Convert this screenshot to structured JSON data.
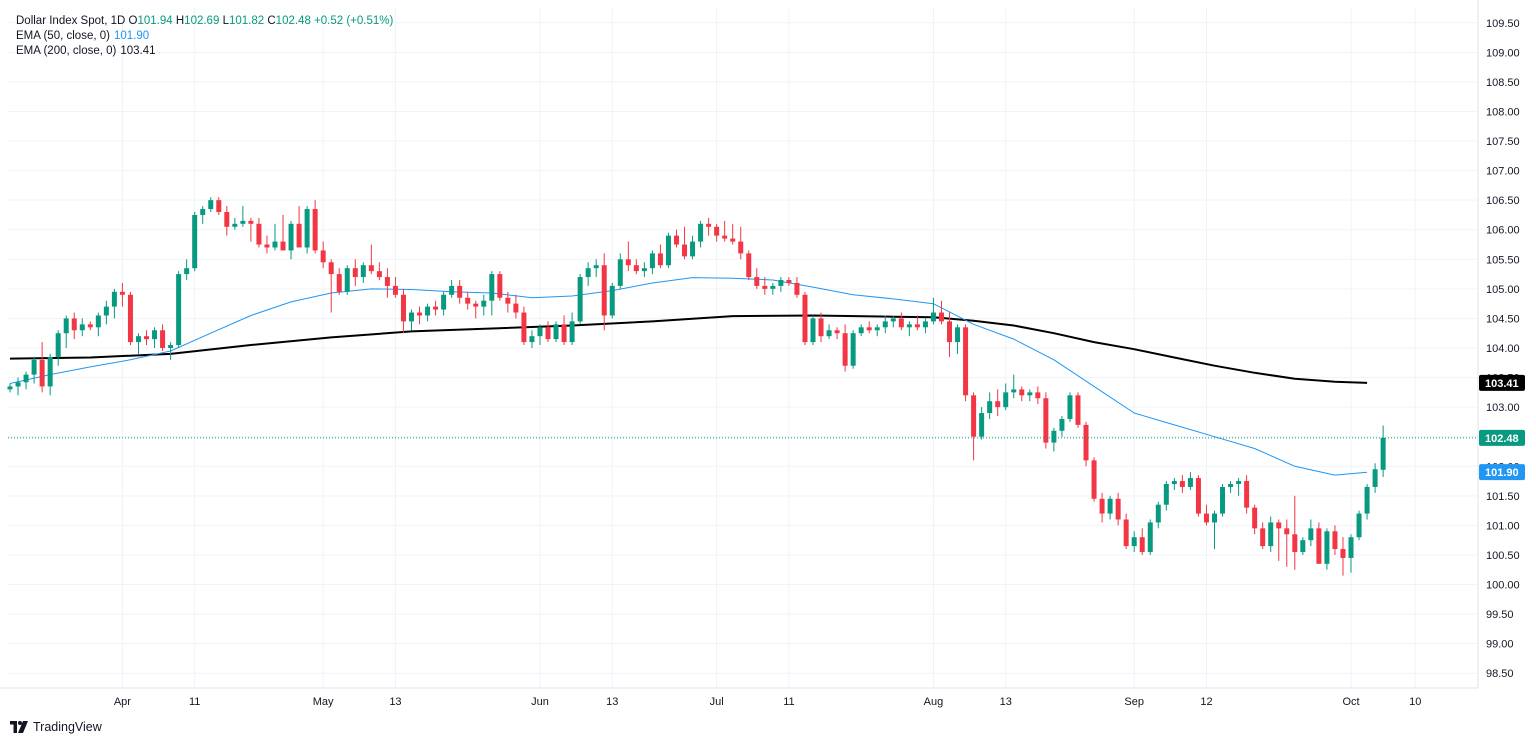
{
  "legend": {
    "symbol": "Dollar Index Spot",
    "interval": "1D",
    "open_label": "O",
    "open": "101.94",
    "high_label": "H",
    "high": "102.69",
    "low_label": "L",
    "low": "101.82",
    "close_label": "C",
    "close": "102.48",
    "change": "+0.52 (+0.51%)",
    "ema50_label": "EMA (50, close, 0)",
    "ema50_value": "101.90",
    "ema200_label": "EMA (200, close, 0)",
    "ema200_value": "103.41"
  },
  "brand": {
    "name": "TradingView"
  },
  "colors": {
    "up": "#089981",
    "down": "#f23645",
    "ema50": "#2196f3",
    "ema200": "#000000",
    "grid": "#f0f3fa"
  },
  "chart_data": {
    "type": "candlestick",
    "title": "Dollar Index Spot, 1D",
    "ylim": [
      98.25,
      109.75
    ],
    "y_ticks": [
      98.5,
      99.0,
      99.5,
      100.0,
      100.5,
      101.0,
      101.5,
      102.0,
      102.5,
      103.0,
      103.5,
      104.0,
      104.5,
      105.0,
      105.5,
      106.0,
      106.5,
      107.0,
      107.5,
      108.0,
      108.5,
      109.0,
      109.5
    ],
    "y_tick_labels": [
      "98.50",
      "99.00",
      "99.50",
      "100.00",
      "100.50",
      "101.00",
      "101.50",
      "102.00",
      "102.50",
      "103.00",
      "103.50",
      "104.00",
      "104.50",
      "105.00",
      "105.50",
      "106.00",
      "106.50",
      "107.00",
      "107.50",
      "108.00",
      "108.50",
      "109.00",
      "109.50"
    ],
    "x_tick_labels": [
      {
        "label": "Apr",
        "index": 14
      },
      {
        "label": "11",
        "index": 23
      },
      {
        "label": "May",
        "index": 39
      },
      {
        "label": "13",
        "index": 48
      },
      {
        "label": "Jun",
        "index": 66
      },
      {
        "label": "13",
        "index": 75
      },
      {
        "label": "Jul",
        "index": 88
      },
      {
        "label": "11",
        "index": 97
      },
      {
        "label": "Aug",
        "index": 115
      },
      {
        "label": "13",
        "index": 124
      },
      {
        "label": "Sep",
        "index": 140
      },
      {
        "label": "12",
        "index": 149
      },
      {
        "label": "Oct",
        "index": 167
      },
      {
        "label": "10",
        "index": 175
      }
    ],
    "last_close": 102.48,
    "ema50_last": 101.9,
    "ema200_last": 103.41,
    "candles": [
      [
        103.3,
        103.4,
        103.25,
        103.35
      ],
      [
        103.35,
        103.5,
        103.2,
        103.42
      ],
      [
        103.42,
        103.6,
        103.3,
        103.55
      ],
      [
        103.55,
        103.85,
        103.4,
        103.8
      ],
      [
        103.8,
        104.1,
        103.25,
        103.35
      ],
      [
        103.35,
        103.9,
        103.2,
        103.85
      ],
      [
        103.85,
        104.3,
        103.7,
        104.25
      ],
      [
        104.25,
        104.55,
        104.0,
        104.5
      ],
      [
        104.5,
        104.6,
        104.15,
        104.3
      ],
      [
        104.3,
        104.5,
        104.2,
        104.4
      ],
      [
        104.4,
        104.45,
        104.3,
        104.35
      ],
      [
        104.35,
        104.6,
        104.2,
        104.55
      ],
      [
        104.55,
        104.8,
        104.4,
        104.7
      ],
      [
        104.7,
        105.0,
        104.5,
        104.95
      ],
      [
        104.95,
        105.1,
        104.7,
        104.9
      ],
      [
        104.9,
        104.95,
        104.05,
        104.1
      ],
      [
        104.1,
        104.25,
        103.9,
        104.2
      ],
      [
        104.2,
        104.3,
        104.05,
        104.15
      ],
      [
        104.15,
        104.35,
        104.0,
        104.3
      ],
      [
        104.3,
        104.4,
        103.95,
        104.0
      ],
      [
        104.0,
        104.1,
        103.8,
        104.05
      ],
      [
        104.05,
        105.3,
        104.0,
        105.25
      ],
      [
        105.25,
        105.5,
        105.15,
        105.35
      ],
      [
        105.35,
        106.3,
        105.3,
        106.25
      ],
      [
        106.25,
        106.4,
        106.1,
        106.35
      ],
      [
        106.35,
        106.55,
        106.3,
        106.5
      ],
      [
        106.5,
        106.55,
        106.25,
        106.3
      ],
      [
        106.3,
        106.4,
        105.9,
        106.05
      ],
      [
        106.05,
        106.2,
        106.0,
        106.1
      ],
      [
        106.1,
        106.4,
        106.05,
        106.15
      ],
      [
        106.15,
        106.2,
        105.8,
        106.1
      ],
      [
        106.1,
        106.2,
        105.7,
        105.75
      ],
      [
        105.75,
        105.9,
        105.6,
        105.7
      ],
      [
        105.7,
        106.1,
        105.65,
        105.8
      ],
      [
        105.8,
        106.25,
        105.7,
        105.65
      ],
      [
        105.65,
        106.15,
        105.5,
        106.1
      ],
      [
        106.1,
        106.4,
        105.8,
        105.7
      ],
      [
        105.7,
        106.4,
        105.6,
        106.35
      ],
      [
        106.35,
        106.5,
        105.6,
        105.65
      ],
      [
        105.65,
        105.8,
        105.35,
        105.45
      ],
      [
        105.45,
        105.5,
        104.6,
        105.25
      ],
      [
        105.25,
        105.35,
        104.9,
        104.95
      ],
      [
        104.95,
        105.4,
        104.9,
        105.35
      ],
      [
        105.35,
        105.5,
        105.05,
        105.2
      ],
      [
        105.2,
        105.45,
        105.1,
        105.4
      ],
      [
        105.4,
        105.75,
        105.25,
        105.3
      ],
      [
        105.3,
        105.45,
        105.15,
        105.2
      ],
      [
        105.2,
        105.35,
        104.85,
        105.05
      ],
      [
        105.05,
        105.2,
        104.85,
        104.9
      ],
      [
        104.9,
        105.0,
        104.25,
        104.45
      ],
      [
        104.45,
        104.65,
        104.3,
        104.6
      ],
      [
        104.6,
        104.7,
        104.4,
        104.55
      ],
      [
        104.55,
        104.75,
        104.45,
        104.7
      ],
      [
        104.7,
        104.8,
        104.55,
        104.65
      ],
      [
        104.65,
        104.95,
        104.55,
        104.9
      ],
      [
        104.9,
        105.15,
        104.85,
        105.05
      ],
      [
        105.05,
        105.15,
        104.75,
        104.85
      ],
      [
        104.85,
        104.95,
        104.65,
        104.75
      ],
      [
        104.75,
        104.8,
        104.5,
        104.7
      ],
      [
        104.7,
        104.9,
        104.55,
        104.8
      ],
      [
        104.8,
        105.3,
        104.55,
        105.25
      ],
      [
        105.25,
        105.3,
        104.8,
        104.85
      ],
      [
        104.85,
        104.95,
        104.6,
        104.75
      ],
      [
        104.75,
        104.9,
        104.5,
        104.6
      ],
      [
        104.6,
        104.7,
        104.05,
        104.1
      ],
      [
        104.1,
        104.3,
        104.0,
        104.2
      ],
      [
        104.2,
        104.4,
        104.05,
        104.35
      ],
      [
        104.35,
        104.45,
        104.1,
        104.15
      ],
      [
        104.15,
        104.45,
        104.1,
        104.4
      ],
      [
        104.4,
        104.55,
        104.05,
        104.1
      ],
      [
        104.1,
        104.6,
        104.05,
        104.45
      ],
      [
        104.45,
        105.25,
        104.4,
        105.2
      ],
      [
        105.2,
        105.45,
        105.05,
        105.35
      ],
      [
        105.35,
        105.5,
        105.2,
        105.4
      ],
      [
        105.4,
        105.6,
        104.3,
        104.55
      ],
      [
        104.55,
        105.1,
        104.5,
        105.05
      ],
      [
        105.05,
        105.6,
        105.0,
        105.5
      ],
      [
        105.5,
        105.8,
        105.3,
        105.4
      ],
      [
        105.4,
        105.5,
        105.25,
        105.3
      ],
      [
        105.3,
        105.45,
        105.2,
        105.35
      ],
      [
        105.35,
        105.65,
        105.25,
        105.6
      ],
      [
        105.6,
        105.75,
        105.35,
        105.4
      ],
      [
        105.4,
        105.95,
        105.35,
        105.9
      ],
      [
        105.9,
        106.0,
        105.7,
        105.75
      ],
      [
        105.75,
        106.05,
        105.5,
        105.55
      ],
      [
        105.55,
        105.9,
        105.5,
        105.8
      ],
      [
        105.8,
        106.15,
        105.7,
        106.1
      ],
      [
        106.1,
        106.2,
        105.9,
        106.05
      ],
      [
        106.05,
        106.1,
        105.8,
        105.9
      ],
      [
        105.9,
        106.15,
        105.8,
        105.85
      ],
      [
        105.85,
        106.1,
        105.75,
        105.8
      ],
      [
        105.8,
        106.05,
        105.5,
        105.6
      ],
      [
        105.6,
        105.65,
        105.15,
        105.2
      ],
      [
        105.2,
        105.35,
        105.0,
        105.05
      ],
      [
        105.05,
        105.2,
        104.9,
        105.0
      ],
      [
        105.0,
        105.1,
        104.9,
        105.05
      ],
      [
        105.05,
        105.2,
        104.95,
        105.15
      ],
      [
        105.15,
        105.2,
        105.05,
        105.1
      ],
      [
        105.1,
        105.2,
        104.85,
        104.9
      ],
      [
        104.9,
        104.95,
        104.05,
        104.1
      ],
      [
        104.1,
        104.55,
        104.05,
        104.5
      ],
      [
        104.5,
        104.6,
        104.1,
        104.2
      ],
      [
        104.2,
        104.4,
        104.15,
        104.3
      ],
      [
        104.3,
        104.35,
        104.15,
        104.25
      ],
      [
        104.25,
        104.4,
        103.6,
        103.7
      ],
      [
        103.7,
        104.3,
        103.65,
        104.25
      ],
      [
        104.25,
        104.4,
        104.2,
        104.35
      ],
      [
        104.35,
        104.45,
        104.25,
        104.3
      ],
      [
        104.3,
        104.4,
        104.2,
        104.35
      ],
      [
        104.35,
        104.55,
        104.25,
        104.45
      ],
      [
        104.45,
        104.55,
        104.35,
        104.5
      ],
      [
        104.5,
        104.6,
        104.3,
        104.35
      ],
      [
        104.35,
        104.45,
        104.2,
        104.4
      ],
      [
        104.4,
        104.55,
        104.3,
        104.35
      ],
      [
        104.35,
        104.5,
        104.25,
        104.45
      ],
      [
        104.45,
        104.85,
        104.4,
        104.6
      ],
      [
        104.6,
        104.8,
        104.4,
        104.45
      ],
      [
        104.45,
        104.6,
        103.85,
        104.1
      ],
      [
        104.1,
        104.4,
        103.9,
        104.35
      ],
      [
        104.35,
        104.4,
        103.1,
        103.2
      ],
      [
        103.2,
        103.25,
        102.1,
        102.5
      ],
      [
        102.5,
        103.0,
        102.45,
        102.9
      ],
      [
        102.9,
        103.25,
        102.8,
        103.1
      ],
      [
        103.1,
        103.3,
        102.85,
        103.0
      ],
      [
        103.0,
        103.4,
        102.95,
        103.25
      ],
      [
        103.25,
        103.55,
        103.15,
        103.3
      ],
      [
        103.3,
        103.35,
        103.1,
        103.2
      ],
      [
        103.2,
        103.3,
        103.1,
        103.25
      ],
      [
        103.25,
        103.35,
        103.05,
        103.15
      ],
      [
        103.15,
        103.25,
        102.3,
        102.4
      ],
      [
        102.4,
        102.65,
        102.25,
        102.6
      ],
      [
        102.6,
        102.85,
        102.5,
        102.8
      ],
      [
        102.8,
        103.25,
        102.75,
        103.2
      ],
      [
        103.2,
        103.25,
        102.65,
        102.7
      ],
      [
        102.7,
        102.75,
        102.0,
        102.1
      ],
      [
        102.1,
        102.15,
        101.4,
        101.45
      ],
      [
        101.45,
        101.55,
        101.05,
        101.2
      ],
      [
        101.2,
        101.5,
        101.1,
        101.45
      ],
      [
        101.45,
        101.55,
        101.0,
        101.1
      ],
      [
        101.1,
        101.2,
        100.6,
        100.65
      ],
      [
        100.65,
        100.9,
        100.55,
        100.8
      ],
      [
        100.8,
        100.95,
        100.5,
        100.55
      ],
      [
        100.55,
        101.1,
        100.5,
        101.05
      ],
      [
        101.05,
        101.4,
        100.95,
        101.35
      ],
      [
        101.35,
        101.75,
        101.25,
        101.7
      ],
      [
        101.7,
        101.8,
        101.6,
        101.75
      ],
      [
        101.75,
        101.85,
        101.55,
        101.65
      ],
      [
        101.65,
        101.9,
        101.6,
        101.8
      ],
      [
        101.8,
        101.85,
        101.15,
        101.2
      ],
      [
        101.2,
        101.35,
        101.0,
        101.05
      ],
      [
        101.05,
        101.25,
        100.6,
        101.2
      ],
      [
        101.2,
        101.7,
        101.15,
        101.65
      ],
      [
        101.65,
        101.75,
        101.55,
        101.7
      ],
      [
        101.7,
        101.8,
        101.5,
        101.75
      ],
      [
        101.75,
        101.85,
        101.2,
        101.3
      ],
      [
        101.3,
        101.35,
        100.85,
        100.95
      ],
      [
        100.95,
        101.05,
        100.6,
        100.65
      ],
      [
        100.65,
        101.15,
        100.55,
        101.05
      ],
      [
        101.05,
        101.1,
        100.4,
        100.95
      ],
      [
        100.95,
        101.1,
        100.3,
        100.85
      ],
      [
        100.85,
        101.5,
        100.25,
        100.55
      ],
      [
        100.55,
        100.8,
        100.5,
        100.75
      ],
      [
        100.75,
        101.1,
        100.65,
        100.95
      ],
      [
        100.95,
        101.05,
        100.35,
        100.35
      ],
      [
        100.35,
        100.95,
        100.25,
        100.9
      ],
      [
        100.9,
        101.0,
        100.5,
        100.6
      ],
      [
        100.6,
        100.8,
        100.15,
        100.45
      ],
      [
        100.45,
        100.85,
        100.2,
        100.8
      ],
      [
        100.8,
        101.25,
        100.75,
        101.2
      ],
      [
        101.2,
        101.7,
        101.1,
        101.65
      ],
      [
        101.65,
        102.05,
        101.55,
        101.95
      ],
      [
        101.94,
        102.69,
        101.82,
        102.48
      ]
    ],
    "ema50": [
      [
        0,
        103.4
      ],
      [
        5,
        103.55
      ],
      [
        10,
        103.68
      ],
      [
        15,
        103.8
      ],
      [
        20,
        103.95
      ],
      [
        25,
        104.25
      ],
      [
        30,
        104.55
      ],
      [
        35,
        104.78
      ],
      [
        40,
        104.93
      ],
      [
        45,
        105.0
      ],
      [
        50,
        104.99
      ],
      [
        55,
        104.95
      ],
      [
        60,
        104.93
      ],
      [
        65,
        104.85
      ],
      [
        70,
        104.88
      ],
      [
        75,
        104.97
      ],
      [
        80,
        105.1
      ],
      [
        85,
        105.19
      ],
      [
        90,
        105.18
      ],
      [
        95,
        105.15
      ],
      [
        100,
        105.03
      ],
      [
        105,
        104.9
      ],
      [
        110,
        104.83
      ],
      [
        115,
        104.75
      ],
      [
        120,
        104.4
      ],
      [
        125,
        104.15
      ],
      [
        130,
        103.8
      ],
      [
        135,
        103.35
      ],
      [
        140,
        102.9
      ],
      [
        145,
        102.7
      ],
      [
        150,
        102.5
      ],
      [
        155,
        102.3
      ],
      [
        160,
        102.0
      ],
      [
        165,
        101.85
      ],
      [
        169,
        101.9
      ]
    ],
    "ema200": [
      [
        0,
        103.82
      ],
      [
        10,
        103.84
      ],
      [
        20,
        103.9
      ],
      [
        30,
        104.05
      ],
      [
        40,
        104.18
      ],
      [
        50,
        104.28
      ],
      [
        60,
        104.33
      ],
      [
        70,
        104.38
      ],
      [
        80,
        104.45
      ],
      [
        90,
        104.54
      ],
      [
        100,
        104.55
      ],
      [
        110,
        104.53
      ],
      [
        115,
        104.52
      ],
      [
        120,
        104.46
      ],
      [
        125,
        104.38
      ],
      [
        130,
        104.25
      ],
      [
        135,
        104.1
      ],
      [
        140,
        103.98
      ],
      [
        145,
        103.84
      ],
      [
        150,
        103.7
      ],
      [
        155,
        103.58
      ],
      [
        160,
        103.48
      ],
      [
        165,
        103.43
      ],
      [
        169,
        103.41
      ]
    ]
  }
}
